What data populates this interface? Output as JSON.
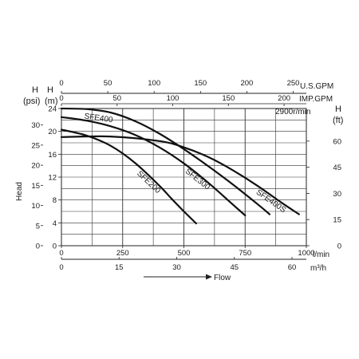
{
  "chart_data": {
    "type": "line",
    "title": "",
    "annotation": "2900r/min",
    "grid": true,
    "axes": {
      "x_bottom_lpm": {
        "unit_label": "l/min",
        "range": [
          0,
          1000
        ],
        "ticks": [
          "0",
          "250",
          "500",
          "750",
          "1000"
        ]
      },
      "x_bottom_m3h": {
        "unit_label": "m³/h",
        "range": [
          0,
          60
        ],
        "ticks": [
          "0",
          "15",
          "30",
          "45",
          "60"
        ]
      },
      "x_top_usgpm": {
        "unit_label": "U.S.GPM",
        "range": [
          0,
          264.2
        ],
        "ticks": [
          "0",
          "50",
          "100",
          "150",
          "200",
          "250"
        ]
      },
      "x_top_impgpm": {
        "unit_label": "IMP.GPM",
        "range": [
          0,
          220
        ],
        "ticks": [
          "0",
          "50",
          "100",
          "150",
          "200"
        ]
      },
      "y_left_m": {
        "header_top": "H",
        "header_bottom": "(m)",
        "range": [
          0,
          24
        ],
        "ticks": [
          "0",
          "4",
          "8",
          "12",
          "16",
          "20",
          "24"
        ]
      },
      "y_left_psi": {
        "header_top": "H",
        "header_bottom": "(psi)",
        "range": [
          0,
          34.1
        ],
        "ticks": [
          "0",
          "5",
          "10",
          "15",
          "20",
          "25",
          "30"
        ]
      },
      "y_right_ft": {
        "header_top": "H",
        "header_bottom": "(ft)",
        "range": [
          0,
          78.7
        ],
        "ticks": [
          "0",
          "15",
          "30",
          "45",
          "60"
        ]
      },
      "ylabel": "Head",
      "xlabel": "Flow"
    },
    "series": [
      {
        "name": "SFE200",
        "x": [
          0,
          100,
          200,
          300,
          400,
          450,
          500,
          550
        ],
        "y": [
          20.3,
          19.3,
          17.5,
          14.5,
          10.5,
          8.2,
          6.0,
          3.9
        ]
      },
      {
        "name": "SFE300",
        "x": [
          0,
          100,
          200,
          300,
          400,
          500,
          600,
          700,
          750
        ],
        "y": [
          22.5,
          21.9,
          20.9,
          19.4,
          17.2,
          14.4,
          11.0,
          7.2,
          5.3
        ]
      },
      {
        "name": "SFE400",
        "x": [
          0,
          100,
          200,
          300,
          400,
          500,
          600,
          700,
          800,
          850
        ],
        "y": [
          24.0,
          23.9,
          23.3,
          21.8,
          19.6,
          16.9,
          13.9,
          10.7,
          7.3,
          5.5
        ]
      },
      {
        "name": "SFE400S",
        "x": [
          0,
          200,
          400,
          500,
          600,
          700,
          800,
          900,
          970
        ],
        "y": [
          19.0,
          19.1,
          18.3,
          17.2,
          15.5,
          13.2,
          10.5,
          7.5,
          5.5
        ]
      }
    ]
  }
}
